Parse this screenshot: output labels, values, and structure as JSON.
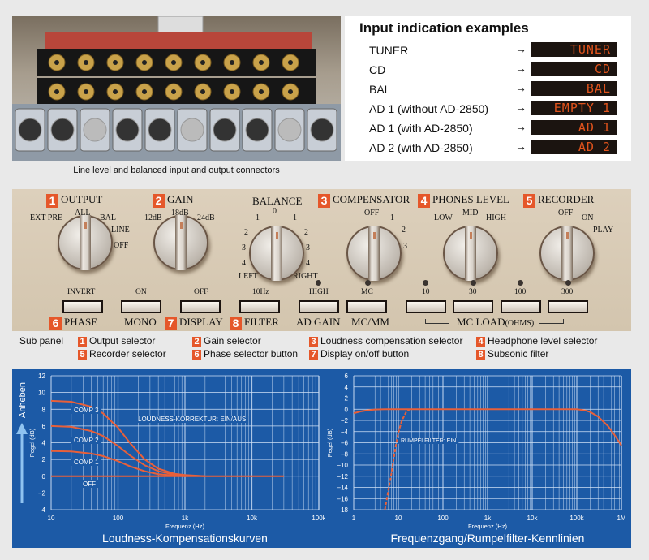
{
  "photo": {
    "caption": "Line level and balanced input and output connectors"
  },
  "input_indication": {
    "title": "Input indication examples",
    "arrow": "→",
    "rows": [
      {
        "source": "TUNER",
        "display": "TUNER"
      },
      {
        "source": "CD",
        "display": "CD"
      },
      {
        "source": "BAL",
        "display": "BAL"
      },
      {
        "source": "AD 1 (without AD-2850)",
        "display": "EMPTY 1"
      },
      {
        "source": "AD 1 (with AD-2850)",
        "display": "AD 1"
      },
      {
        "source": "AD 2 (with AD-2850)",
        "display": "AD 2"
      }
    ]
  },
  "panel": {
    "knobs": [
      {
        "num": "1",
        "title": "OUTPUT",
        "labels": [
          "EXT PRE",
          "ALL",
          "BAL",
          "LINE",
          "OFF"
        ]
      },
      {
        "num": "2",
        "title": "GAIN",
        "labels": [
          "12dB",
          "18dB",
          "24dB"
        ]
      },
      {
        "num": "",
        "title": "BALANCE",
        "labels": [
          "0",
          "1",
          "1",
          "2",
          "2",
          "3",
          "3",
          "4",
          "4",
          "LEFT",
          "RIGHT"
        ]
      },
      {
        "num": "3",
        "title": "COMPENSATOR",
        "labels": [
          "OFF",
          "1",
          "2",
          "3"
        ]
      },
      {
        "num": "4",
        "title": "PHONES LEVEL",
        "labels": [
          "LOW",
          "MID",
          "HIGH"
        ]
      },
      {
        "num": "5",
        "title": "RECORDER",
        "labels": [
          "OFF",
          "ON",
          "PLAY"
        ]
      }
    ],
    "buttons": [
      "INVERT",
      "ON",
      "OFF",
      "10Hz",
      "HIGH",
      "MC",
      "10",
      "30",
      "100",
      "300"
    ],
    "bottom": [
      {
        "num": "6",
        "label": "PHASE"
      },
      {
        "num": "",
        "label": "MONO"
      },
      {
        "num": "7",
        "label": "DISPLAY"
      },
      {
        "num": "8",
        "label": "FILTER"
      },
      {
        "num": "",
        "label": "AD GAIN"
      },
      {
        "num": "",
        "label": "MC/MM"
      },
      {
        "num": "",
        "label": "MC LOAD",
        "unit": "(OHMS)"
      }
    ]
  },
  "legend": {
    "title": "Sub panel",
    "items": [
      {
        "num": "1",
        "label": "Output selector"
      },
      {
        "num": "2",
        "label": "Gain selector"
      },
      {
        "num": "3",
        "label": "Loudness compensation selector"
      },
      {
        "num": "4",
        "label": "Headphone level selector"
      },
      {
        "num": "5",
        "label": "Recorder selector"
      },
      {
        "num": "6",
        "label": "Phase selector button"
      },
      {
        "num": "7",
        "label": "Display on/off button"
      },
      {
        "num": "8",
        "label": "Subsonic filter"
      }
    ]
  },
  "colors": {
    "accent": "#e5572a",
    "chart_bg": "#1c5aa6",
    "curve": "#e8603a"
  },
  "chart_data": [
    {
      "type": "line",
      "title": "Loudness-Kompensationskurven",
      "xlabel": "Frequenz (Hz)",
      "ylabel": "Pegel (dB)",
      "side_label": "Anheben",
      "xscale": "log",
      "xlim": [
        10,
        100000
      ],
      "ylim": [
        -4,
        12
      ],
      "xticks": [
        "10",
        "100",
        "1k",
        "10k",
        "100k"
      ],
      "yticks": [
        "12",
        "10",
        "8",
        "6",
        "4",
        "2",
        "0",
        "−2",
        "−4"
      ],
      "annotation": "LOUDNESS-KORREKTUR: EIN/AUS",
      "series": [
        {
          "name": "COMP 3",
          "x": [
            10,
            20,
            40,
            60,
            100,
            150,
            250,
            400,
            700,
            1000,
            2000
          ],
          "y": [
            9,
            8.9,
            8.3,
            7.5,
            5.8,
            4,
            2,
            0.9,
            0.3,
            0.15,
            0
          ]
        },
        {
          "name": "COMP 2",
          "x": [
            10,
            20,
            40,
            60,
            100,
            150,
            250,
            400,
            700,
            1000,
            2000
          ],
          "y": [
            6,
            5.9,
            5.4,
            4.8,
            3.6,
            2.5,
            1.3,
            0.6,
            0.2,
            0.1,
            0
          ]
        },
        {
          "name": "COMP 1",
          "x": [
            10,
            20,
            40,
            60,
            100,
            150,
            250,
            400,
            700,
            1000
          ],
          "y": [
            3,
            2.95,
            2.7,
            2.4,
            1.8,
            1.2,
            0.6,
            0.25,
            0.08,
            0
          ]
        },
        {
          "name": "OFF",
          "x": [
            10,
            30000
          ],
          "y": [
            0,
            0
          ]
        }
      ]
    },
    {
      "type": "line",
      "title": "Frequenzgang/Rumpelfilter-Kennlinien",
      "xlabel": "Frequenz (Hz)",
      "ylabel": "Pegel (dB)",
      "xscale": "log",
      "xlim": [
        1,
        1000000
      ],
      "ylim": [
        -18,
        6
      ],
      "xticks": [
        "1",
        "10",
        "100",
        "1k",
        "10k",
        "100k",
        "1M"
      ],
      "yticks": [
        "6",
        "4",
        "2",
        "0",
        "−2",
        "−4",
        "−6",
        "−8",
        "−10",
        "−12",
        "−14",
        "−16",
        "−18"
      ],
      "annotation": "RUMPELFILTER: EIN",
      "series": [
        {
          "name": "Frequenzgang",
          "x": [
            1,
            1.5,
            2,
            3,
            5,
            100000,
            150000,
            200000,
            300000,
            500000,
            700000,
            1000000
          ],
          "y": [
            -0.7,
            -0.35,
            -0.2,
            -0.05,
            0,
            0,
            -0.2,
            -0.5,
            -1.3,
            -3,
            -4.6,
            -6.5
          ]
        },
        {
          "name": "Rumpelfilter",
          "dashed": true,
          "x": [
            5,
            6,
            7,
            8,
            9,
            10,
            12,
            15,
            18
          ],
          "y": [
            -18,
            -14.5,
            -11.5,
            -8.5,
            -6,
            -4.2,
            -2,
            -0.5,
            0
          ]
        }
      ]
    }
  ]
}
